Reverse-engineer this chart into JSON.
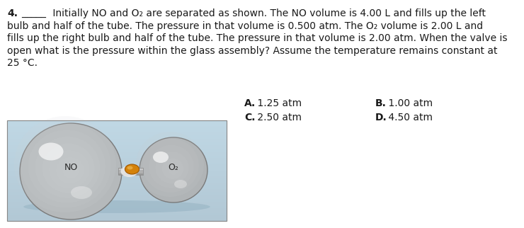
{
  "question_number": "4.",
  "blank": "_____",
  "line1": " Initially NO and O₂ are separated as shown. The NO volume is 4.00 L and fills up the left",
  "line2": "bulb and half of the tube. The pressure in that volume is 0.500 atm. The O₂ volume is 2.00 L and",
  "line3": "fills up the right bulb and half of the tube. The pressure in that volume is 2.00 atm. When the valve is",
  "line4": "open what is the pressure within the glass assembly? Assume the temperature remains constant at",
  "line5": "25 °C.",
  "opt_A_bold": "A.",
  "opt_A_text": " 1.25 atm",
  "opt_B_bold": "B.",
  "opt_B_text": " 1.00 atm",
  "opt_C_bold": "C.",
  "opt_C_text": " 2.50 atm",
  "opt_D_bold": "D.",
  "opt_D_text": " 4.50 atm",
  "label_NO": "NO",
  "label_O2": "O₂",
  "bg_color": "#ffffff",
  "text_color": "#1a1a1a",
  "image_bg_top": "#b8ccd8",
  "image_bg_bot": "#8aaabb",
  "bulb_color": "#b8bcbe",
  "bulb_edge": "#888888",
  "tube_color": "#aaaaaa",
  "valve_color": "#c87820",
  "font_size": 10.0
}
